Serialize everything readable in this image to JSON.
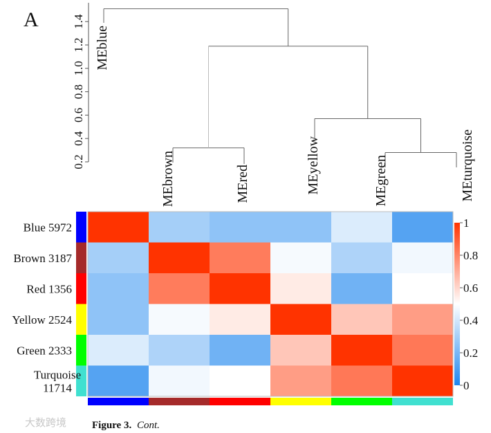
{
  "panel_label": "A",
  "caption": {
    "bold": "Figure 3.",
    "italic": "Cont."
  },
  "watermark": "大数跨境",
  "chart_data": [
    {
      "type": "dendrogram",
      "y_ticks": [
        "0.2",
        "0.4",
        "0.6",
        "0.8",
        "1.0",
        "1.2",
        "1.4"
      ],
      "y_tick_values": [
        0.2,
        0.4,
        0.6,
        0.8,
        1.0,
        1.2,
        1.4
      ],
      "leaves": [
        "MEblue",
        "MEbrown",
        "MEred",
        "MEyellow",
        "MEgreen",
        "MEturquoise"
      ],
      "merges": [
        {
          "left": "MEbrown",
          "right": "MEred",
          "height": 0.32
        },
        {
          "left": "MEgreen",
          "right": "MEturquoise",
          "height": 0.28
        },
        {
          "left": "MEyellow",
          "right": "green+turquoise",
          "height": 0.57
        },
        {
          "left": "brown+red",
          "right": "yellow+green+turquoise",
          "height": 1.19
        },
        {
          "left": "MEblue",
          "right": "rest",
          "height": 1.51
        }
      ]
    },
    {
      "type": "heatmap",
      "rows": [
        {
          "label": "Blue 5972",
          "lines": [
            "Blue 5972"
          ],
          "color": "#0000ff"
        },
        {
          "label": "Brown 3187",
          "lines": [
            "Brown 3187"
          ],
          "color": "#a52a2a"
        },
        {
          "label": "Red 1356",
          "lines": [
            "Red 1356"
          ],
          "color": "#ff0000"
        },
        {
          "label": "Yellow 2524",
          "lines": [
            "Yellow 2524"
          ],
          "color": "#ffff00"
        },
        {
          "label": "Green 2333",
          "lines": [
            "Green 2333"
          ],
          "color": "#00ff00"
        },
        {
          "label": "Turquoise 11714",
          "lines": [
            "Turquoise",
            "11714"
          ],
          "color": "#40e0d0"
        }
      ],
      "column_colors": [
        "#0000ff",
        "#a52a2a",
        "#ff0000",
        "#ffff00",
        "#00ff00",
        "#40e0d0"
      ],
      "values": [
        [
          1.0,
          0.3,
          0.25,
          0.25,
          0.42,
          0.12
        ],
        [
          0.3,
          1.0,
          0.82,
          0.48,
          0.32,
          0.47
        ],
        [
          0.25,
          0.82,
          1.0,
          0.55,
          0.18,
          0.5
        ],
        [
          0.25,
          0.48,
          0.55,
          1.0,
          0.64,
          0.74
        ],
        [
          0.42,
          0.32,
          0.18,
          0.64,
          1.0,
          0.83
        ],
        [
          0.12,
          0.47,
          0.5,
          0.74,
          0.83,
          1.0
        ]
      ],
      "colorbar": {
        "range": [
          0,
          1
        ],
        "ticks": [
          "0",
          "0.2",
          "0.4",
          "0.6",
          "0.8",
          "1"
        ],
        "tick_values": [
          0,
          0.2,
          0.4,
          0.6,
          0.8,
          1
        ],
        "low_color": "#1f86ee",
        "mid_color": "#ffffff",
        "high_color": "#ff3300"
      }
    }
  ]
}
